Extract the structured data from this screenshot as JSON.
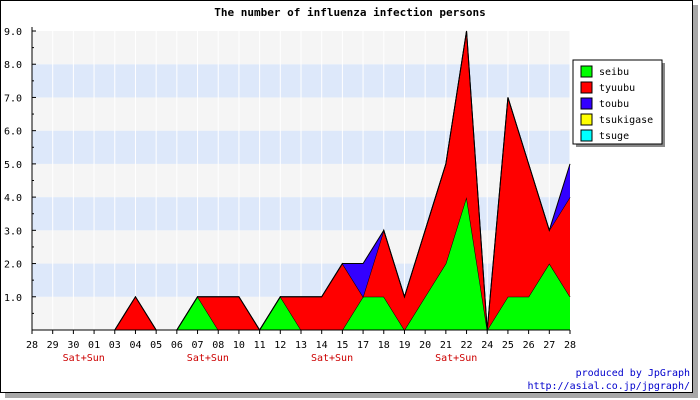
{
  "chart_data": {
    "type": "area",
    "title": "The number of influenza infection persons",
    "x": [
      "28",
      "29",
      "30",
      "01",
      "03",
      "04",
      "05",
      "06",
      "07",
      "08",
      "10",
      "11",
      "12",
      "13",
      "14",
      "15",
      "17",
      "18",
      "19",
      "20",
      "21",
      "22",
      "24",
      "25",
      "26",
      "27",
      "28"
    ],
    "weekend_labels": [
      {
        "index": 2.5,
        "text": "Sat+Sun"
      },
      {
        "index": 8.5,
        "text": "Sat+Sun"
      },
      {
        "index": 14.5,
        "text": "Sat+Sun"
      },
      {
        "index": 20.5,
        "text": "Sat+Sun"
      }
    ],
    "yticks": [
      "1.0",
      "2.0",
      "3.0",
      "4.0",
      "5.0",
      "6.0",
      "7.0",
      "8.0",
      "9.0"
    ],
    "ylim": [
      0,
      9
    ],
    "stacked": true,
    "series": [
      {
        "name": "seibu",
        "color": "#00ff00",
        "values": [
          0,
          0,
          0,
          0,
          0,
          0,
          0,
          0,
          1,
          0,
          0,
          0,
          1,
          0,
          0,
          0,
          1,
          1,
          0,
          1,
          2,
          4,
          0,
          1,
          1,
          2,
          1
        ]
      },
      {
        "name": "tyuubu",
        "color": "#ff0000",
        "values": [
          0,
          0,
          0,
          0,
          0,
          1,
          0,
          0,
          0,
          1,
          1,
          0,
          0,
          1,
          1,
          2,
          0,
          2,
          1,
          2,
          3,
          5,
          0,
          6,
          4,
          1,
          3
        ]
      },
      {
        "name": "toubu",
        "color": "#3300ff",
        "values": [
          0,
          0,
          0,
          0,
          0,
          0,
          0,
          0,
          0,
          0,
          0,
          0,
          0,
          0,
          0,
          0,
          1,
          0,
          0,
          0,
          0,
          0,
          0,
          0,
          0,
          0,
          1
        ]
      },
      {
        "name": "tsukigase",
        "color": "#ffff00",
        "values": [
          0,
          0,
          0,
          0,
          0,
          0,
          0,
          0,
          0,
          0,
          0,
          0,
          0,
          0,
          0,
          0,
          0,
          0,
          0,
          0,
          0,
          0,
          0,
          0,
          0,
          0,
          0
        ]
      },
      {
        "name": "tsuge",
        "color": "#00ffff",
        "values": [
          0,
          0,
          0,
          0,
          0,
          0,
          0,
          0,
          0,
          0,
          0,
          0,
          0,
          0,
          0,
          0,
          0,
          0,
          0,
          0,
          0,
          0,
          0,
          0,
          0,
          0,
          0
        ]
      }
    ],
    "legend_position": "top-right",
    "band_colors": [
      "#f5f5f5",
      "#dde8fa"
    ],
    "weekend_color": "#cc0000",
    "credit_color": "#0000cc"
  },
  "footer": {
    "credit_line1": "produced by JpGraph",
    "credit_line2": "http://asial.co.jp/jpgraph/"
  }
}
